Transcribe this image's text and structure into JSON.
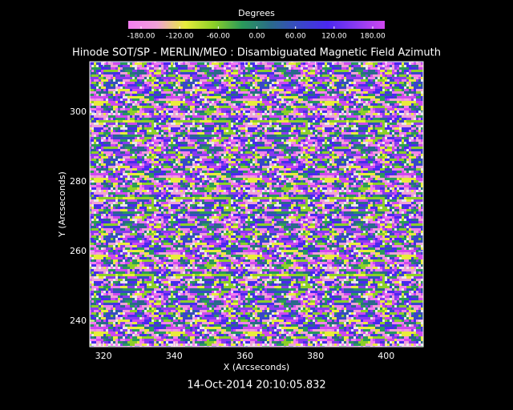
{
  "chart_data": {
    "type": "heatmap",
    "title": "Hinode SOT/SP - MERLIN/MEO : Disambiguated Magnetic Field Azimuth",
    "x_label": "X (Arcseconds)",
    "y_label": "Y (Arcseconds)",
    "colorbar_label": "Degrees",
    "timestamp": "14-Oct-2014 20:10:05.832",
    "xlim": [
      316.1,
      410.5
    ],
    "ylim": [
      232.6,
      314.5
    ],
    "xticks": [
      320,
      340,
      360,
      380,
      400
    ],
    "yticks": [
      240,
      260,
      280,
      300
    ],
    "colorbar_ticks": [
      {
        "value": -180,
        "label": "-180.00"
      },
      {
        "value": -120,
        "label": "-120.00"
      },
      {
        "value": -60,
        "label": "-60.00"
      },
      {
        "value": 0,
        "label": "0.00"
      },
      {
        "value": 60,
        "label": "60.00"
      },
      {
        "value": 120,
        "label": "120.00"
      },
      {
        "value": 180,
        "label": "180.00"
      }
    ],
    "colormap": [
      "#f47ef0",
      "#f0a0d8",
      "#e8ec3c",
      "#8cd028",
      "#2a9a5a",
      "#2a6a8a",
      "#3848c8",
      "#4a28f0",
      "#8a3af0",
      "#d048f0"
    ]
  }
}
